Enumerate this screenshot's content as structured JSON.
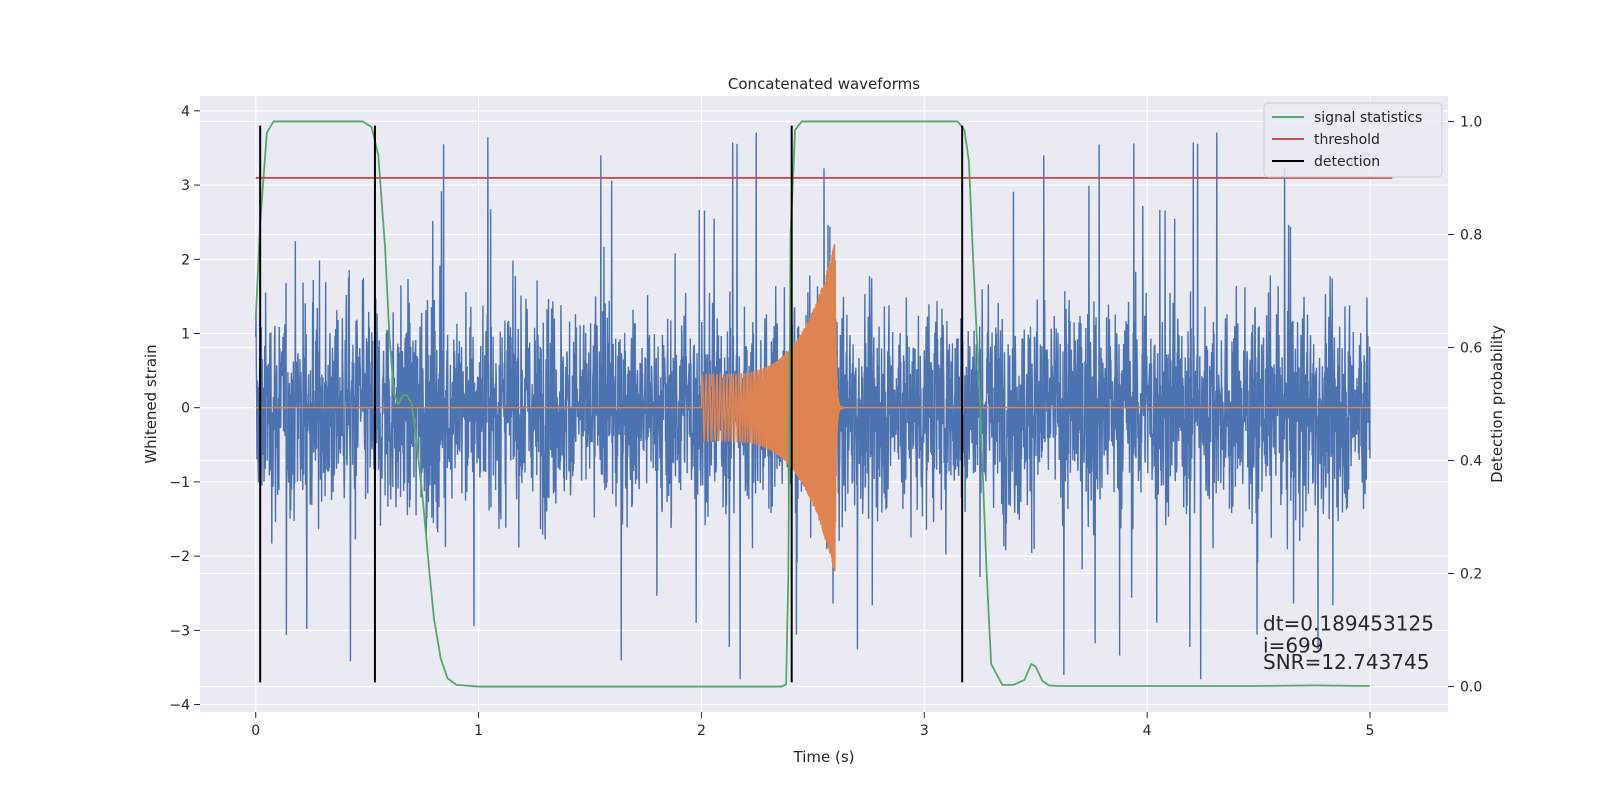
{
  "chart_data": {
    "type": "line",
    "title": "Concatenated waveforms",
    "xlabel": "Time (s)",
    "ylabel": "Whitened strain",
    "ylabel_right": "Detection probability",
    "xlim": [
      -0.25,
      5.35
    ],
    "ylim": [
      -4.1,
      4.2
    ],
    "ylim_right": [
      -0.045,
      1.045
    ],
    "x_ticks": [
      0,
      1,
      2,
      3,
      4,
      5
    ],
    "x_tick_labels": [
      "0",
      "1",
      "2",
      "3",
      "4",
      "5"
    ],
    "y_ticks": [
      -4,
      -3,
      -2,
      -1,
      0,
      1,
      2,
      3,
      4
    ],
    "y_tick_labels": [
      "−4",
      "−3",
      "−2",
      "−1",
      "0",
      "1",
      "2",
      "3",
      "4"
    ],
    "y_right_ticks": [
      0.0,
      0.2,
      0.4,
      0.6,
      0.8,
      1.0
    ],
    "y_right_tick_labels": [
      "0.0",
      "0.2",
      "0.4",
      "0.6",
      "0.8",
      "1.0"
    ],
    "grid": true,
    "legend_position": "top-right",
    "colors": {
      "strain": "#4c72b0",
      "injection": "#dd8452",
      "signal_statistics": "#55a868",
      "threshold": "#c44e52",
      "detection": "#000000",
      "plot_background": "#eaeaf2",
      "grid": "#ffffff"
    },
    "series": [
      {
        "name": "signal statistics",
        "axis": "right",
        "x": [
          0.0,
          0.02,
          0.05,
          0.08,
          0.12,
          0.2,
          0.3,
          0.4,
          0.48,
          0.52,
          0.55,
          0.58,
          0.6,
          0.62,
          0.64,
          0.66,
          0.68,
          0.7,
          0.72,
          0.75,
          0.78,
          0.8,
          0.83,
          0.86,
          0.9,
          1.0,
          1.5,
          2.0,
          2.3,
          2.36,
          2.38,
          2.39,
          2.4,
          2.42,
          2.45,
          2.5,
          2.6,
          3.0,
          3.15,
          3.18,
          3.2,
          3.22,
          3.25,
          3.28,
          3.3,
          3.35,
          3.4,
          3.45,
          3.48,
          3.5,
          3.53,
          3.56,
          3.6,
          4.0,
          4.5,
          4.75,
          5.0
        ],
        "y": [
          0.65,
          0.82,
          0.98,
          1.0,
          1.0,
          1.0,
          1.0,
          1.0,
          1.0,
          0.99,
          0.94,
          0.78,
          0.62,
          0.52,
          0.5,
          0.515,
          0.515,
          0.5,
          0.44,
          0.33,
          0.2,
          0.12,
          0.05,
          0.015,
          0.003,
          0.0,
          0.0,
          0.0,
          0.0,
          0.0,
          0.004,
          0.2,
          0.8,
          0.985,
          1.0,
          1.0,
          1.0,
          1.0,
          1.0,
          0.985,
          0.93,
          0.75,
          0.5,
          0.2,
          0.04,
          0.003,
          0.003,
          0.012,
          0.04,
          0.035,
          0.01,
          0.002,
          0.001,
          0.001,
          0.001,
          0.002,
          0.001
        ]
      },
      {
        "name": "threshold",
        "axis": "right",
        "x": [
          0.0,
          5.1
        ],
        "y": [
          0.9,
          0.9
        ]
      },
      {
        "name": "detection",
        "axis": "left",
        "type": "vlines",
        "x": [
          0.02,
          0.535,
          2.405,
          3.17
        ],
        "y_range": [
          -3.7,
          3.8
        ]
      }
    ],
    "background_series": [
      {
        "name": "",
        "role": "strain",
        "axis": "left",
        "x_range": [
          0.0,
          5.0
        ],
        "envelope": 1.3,
        "noise_note": "dense noisy waveform, typical amplitude ±1.3, peaks up to ±3.8"
      },
      {
        "name": "",
        "role": "injection",
        "axis": "left",
        "chirp_start": 2.0,
        "chirp_end": 2.6,
        "start_amplitude": 0.45,
        "end_amplitude": 2.25
      }
    ],
    "annotations": [
      {
        "text": "dt=0.189453125",
        "x": 4.52,
        "y": -3.0
      },
      {
        "text": " i=699",
        "x": 4.52,
        "y": -3.3
      },
      {
        "text": "SNR=12.743745",
        "x": 4.52,
        "y": -3.52
      }
    ]
  }
}
